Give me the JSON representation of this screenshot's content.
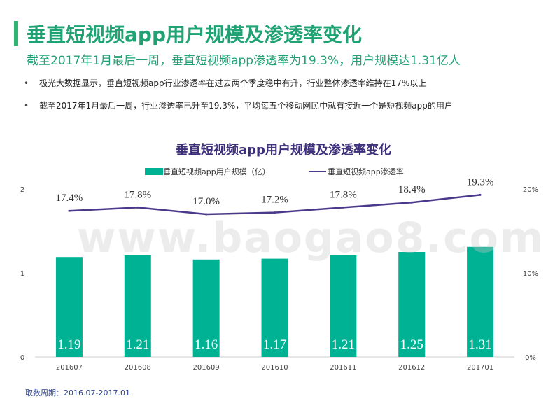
{
  "header": {
    "title": "垂直短视频app用户规模及渗透率变化",
    "subtitle": "截至2017年1月最后一周，垂直短视频app渗透率为19.3%，用户规模达1.31亿人"
  },
  "bullets": [
    "极光大数据显示，垂直短视频app行业渗透率在过去两个季度稳中有升，行业整体渗透率维持在17%以上",
    "截至2017年1月最后一周，行业渗透率已升至19.3%，平均每五个移动网民中就有接近一个是短视频app的用户"
  ],
  "watermark": "www.baogao8.com",
  "footnote": "取数周期：2016.07-2017.01",
  "colors": {
    "bar": "#00b294",
    "line": "#4b3a8c",
    "title": "#1fa374",
    "chart_title": "#3d2f7a"
  },
  "chart_data": {
    "type": "bar",
    "title": "垂直短视频app用户规模及渗透率变化",
    "categories": [
      "201607",
      "201608",
      "201609",
      "201610",
      "201611",
      "201612",
      "201701"
    ],
    "series": [
      {
        "name": "垂直短视频app用户规模（亿）",
        "type": "bar",
        "axis": "left",
        "values": [
          1.19,
          1.21,
          1.16,
          1.17,
          1.21,
          1.25,
          1.31
        ],
        "labels": [
          "1.19",
          "1.21",
          "1.16",
          "1.17",
          "1.21",
          "1.25",
          "1.31"
        ]
      },
      {
        "name": "垂直短视频app渗透率",
        "type": "line",
        "axis": "right",
        "values": [
          17.4,
          17.8,
          17.0,
          17.2,
          17.8,
          18.4,
          19.3
        ],
        "labels": [
          "17.4%",
          "17.8%",
          "17.0%",
          "17.2%",
          "17.8%",
          "18.4%",
          "19.3%"
        ]
      }
    ],
    "y_left": {
      "ylim": [
        0,
        2
      ],
      "ticks": [
        "0",
        "1",
        "2"
      ],
      "tick_values": [
        0,
        1,
        2
      ]
    },
    "y_right": {
      "ylim": [
        0,
        20
      ],
      "ticks": [
        "0%",
        "10%",
        "20%"
      ],
      "tick_values": [
        0,
        10,
        20
      ]
    },
    "legend_position": "top"
  }
}
